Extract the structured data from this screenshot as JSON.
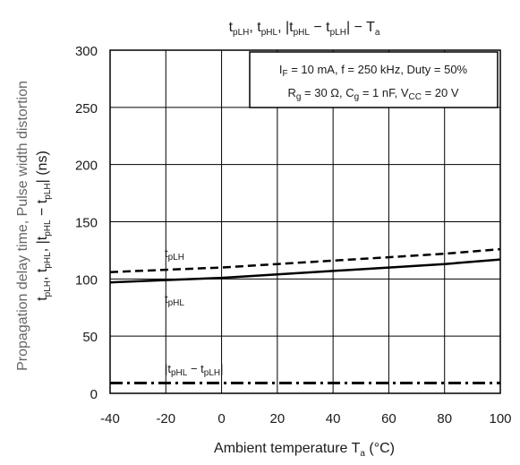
{
  "chart_data": {
    "type": "line",
    "title": "tpLH, tpHL, |tpHL − tpLH| − Ta",
    "xlabel": "Ambient temperature   Ta   (°C)",
    "ylabel_line1": "Propagation delay time, Pulse width distortion",
    "ylabel_line2": "tpLH, tpHL, |tpHL − tpLH|   (ns)",
    "xlim": [
      -40,
      100
    ],
    "ylim": [
      0,
      300
    ],
    "x_ticks": [
      -40,
      -20,
      0,
      20,
      40,
      60,
      80,
      100
    ],
    "y_ticks": [
      0,
      50,
      100,
      150,
      200,
      250,
      300
    ],
    "grid": true,
    "conditions": [
      "IF = 10 mA, f = 250 kHz, Duty = 50%",
      "Rg = 30 Ω, Cg = 1 nF, VCC = 20 V"
    ],
    "series": [
      {
        "name": "tpLH",
        "style": "dashed",
        "x": [
          -40,
          -20,
          0,
          20,
          40,
          60,
          80,
          100
        ],
        "y": [
          106,
          108,
          110,
          113,
          116,
          119,
          122,
          126
        ]
      },
      {
        "name": "tpHL",
        "style": "solid",
        "x": [
          -40,
          -20,
          0,
          20,
          40,
          60,
          80,
          100
        ],
        "y": [
          97,
          99,
          101,
          104,
          107,
          110,
          113,
          117
        ]
      },
      {
        "name": "|tpHL − tpLH|",
        "style": "dashdot",
        "x": [
          -40,
          -20,
          0,
          20,
          40,
          60,
          80,
          100
        ],
        "y": [
          9,
          9,
          9,
          9,
          9,
          9,
          9,
          9
        ]
      }
    ]
  }
}
